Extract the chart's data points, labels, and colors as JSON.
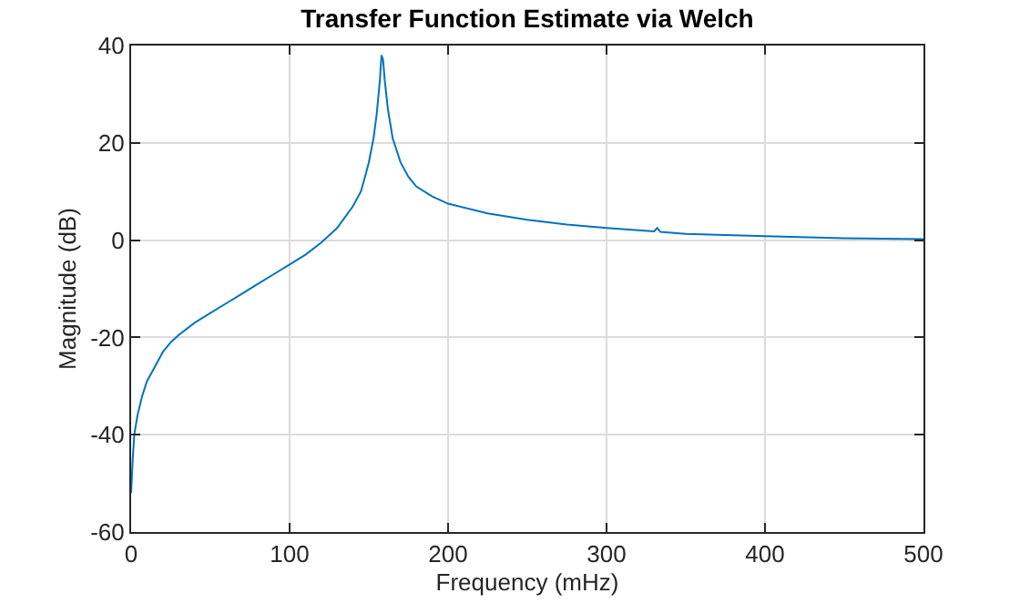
{
  "chart_data": {
    "type": "line",
    "title": "Transfer Function Estimate via Welch",
    "xlabel": "Frequency (mHz)",
    "ylabel": "Magnitude (dB)",
    "x": [
      0,
      1,
      2,
      4,
      7,
      10,
      15,
      20,
      25,
      30,
      40,
      50,
      60,
      70,
      80,
      90,
      100,
      110,
      120,
      130,
      140,
      145,
      148,
      150,
      153,
      155,
      157,
      158,
      159,
      160,
      162,
      165,
      170,
      175,
      180,
      190,
      200,
      225,
      250,
      275,
      300,
      330,
      332,
      334,
      350,
      400,
      450,
      500
    ],
    "series": [
      {
        "color": "#0072bd",
        "values": [
          -52,
          -45,
          -40,
          -36,
          -32,
          -29,
          -26,
          -23,
          -21,
          -19.5,
          -17,
          -15,
          -13,
          -11,
          -9,
          -7,
          -5,
          -3,
          -0.5,
          2.5,
          7,
          10,
          13.5,
          16,
          21,
          26,
          33,
          38,
          37,
          33,
          27,
          21,
          16,
          13,
          11,
          9,
          7.5,
          5.5,
          4.2,
          3.2,
          2.5,
          1.8,
          2.5,
          1.7,
          1.3,
          0.8,
          0.4,
          0.2
        ]
      }
    ],
    "xlim": [
      0,
      500
    ],
    "xticks": [
      0,
      100,
      200,
      300,
      400,
      500
    ],
    "ylim": [
      -60,
      40
    ],
    "yticks": [
      -60,
      -40,
      -20,
      0,
      20,
      40
    ],
    "grid": true,
    "marker": "none",
    "line_style": "solid"
  }
}
